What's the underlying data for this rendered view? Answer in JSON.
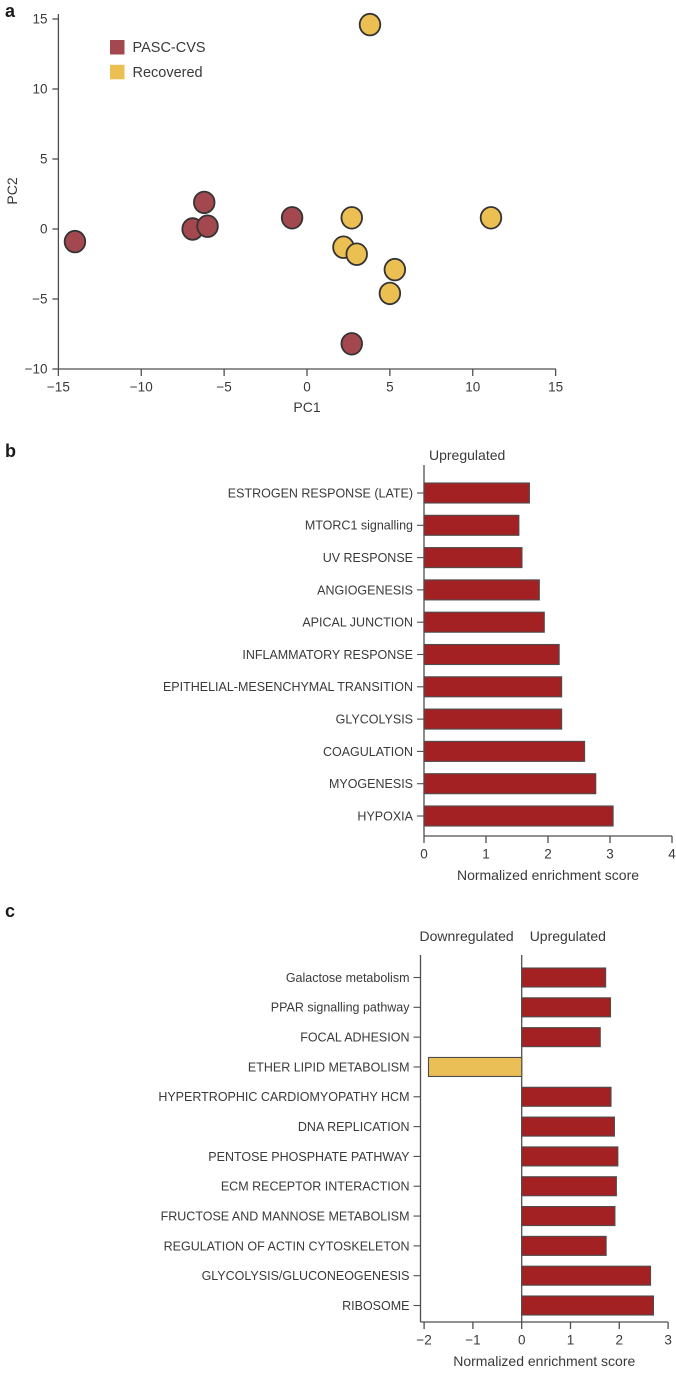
{
  "figure": {
    "panels": [
      {
        "letter": "a"
      },
      {
        "letter": "b"
      },
      {
        "letter": "c"
      }
    ]
  },
  "colors": {
    "pasc_red": "#a4484f",
    "recovered_yellow": "#ecbf53",
    "bar_red": "#a32023",
    "bar_yellow": "#eabf55",
    "axis": "#4f4f4f",
    "text": "#3a3a3a",
    "marker_outline": "#333333",
    "bar_outline": "#4d4d4d"
  },
  "chart_data": [
    {
      "id": "a",
      "type": "scatter",
      "xlabel": "PC1",
      "ylabel": "PC2",
      "xlim": [
        -15,
        15
      ],
      "ylim": [
        -10,
        15
      ],
      "xticks": [
        -15,
        -10,
        -5,
        0,
        5,
        10,
        15
      ],
      "yticks": [
        -10,
        -5,
        0,
        5,
        10,
        15
      ],
      "grid": false,
      "legend_position": "upper-left",
      "legend": [
        {
          "label": "PASC-CVS",
          "color_key": "pasc_red"
        },
        {
          "label": "Recovered",
          "color_key": "recovered_yellow"
        }
      ],
      "series": [
        {
          "name": "PASC-CVS",
          "color_key": "pasc_red",
          "points": [
            [
              -14,
              -0.9
            ],
            [
              -6.9,
              0
            ],
            [
              -6,
              0.2
            ],
            [
              -6.2,
              1.9
            ],
            [
              -0.9,
              0.8
            ],
            [
              2.7,
              -8.2
            ]
          ]
        },
        {
          "name": "Recovered",
          "color_key": "recovered_yellow",
          "points": [
            [
              3.8,
              14.6
            ],
            [
              2.7,
              0.8
            ],
            [
              11.1,
              0.8
            ],
            [
              2.2,
              -1.3
            ],
            [
              3,
              -1.8
            ],
            [
              5.3,
              -2.9
            ],
            [
              5,
              -4.6
            ]
          ]
        }
      ]
    },
    {
      "id": "b",
      "type": "bar",
      "title": "Upregulated",
      "xlabel": "Normalized enrichment score",
      "xlim": [
        0,
        4
      ],
      "xticks": [
        0,
        1,
        2,
        3,
        4
      ],
      "categories": [
        "ESTROGEN RESPONSE (LATE)",
        "MTORC1 signalling",
        "UV RESPONSE",
        "ANGIOGENESIS",
        "APICAL JUNCTION",
        "INFLAMMATORY RESPONSE",
        "EPITHELIAL-MESENCHYMAL TRANSITION",
        "GLYCOLYSIS",
        "COAGULATION",
        "MYOGENESIS",
        "HYPOXIA"
      ],
      "values": [
        1.7,
        1.53,
        1.58,
        1.86,
        1.94,
        2.18,
        2.22,
        2.22,
        2.59,
        2.77,
        3.05
      ]
    },
    {
      "id": "c",
      "type": "bar",
      "title_left": "Downregulated",
      "title_right": "Upregulated",
      "xlabel": "Normalized enrichment score",
      "xlim": [
        -2,
        3
      ],
      "xticks": [
        -2,
        -1,
        0,
        1,
        2,
        3
      ],
      "categories": [
        "Galactose metabolism",
        "PPAR signalling pathway",
        "FOCAL ADHESION",
        "ETHER LIPID METABOLISM",
        "HYPERTROPHIC CARDIOMYOPATHY HCM",
        "DNA REPLICATION",
        "PENTOSE PHOSPHATE PATHWAY",
        "ECM RECEPTOR INTERACTION",
        "FRUCTOSE AND MANNOSE METABOLISM",
        "REGULATION OF ACTIN CYTOSKELETON",
        "GLYCOLYSIS/GLUCONEOGENESIS",
        "RIBOSOME"
      ],
      "values": [
        1.72,
        1.82,
        1.61,
        -1.91,
        1.83,
        1.9,
        1.97,
        1.94,
        1.91,
        1.73,
        2.64,
        2.7
      ]
    }
  ]
}
